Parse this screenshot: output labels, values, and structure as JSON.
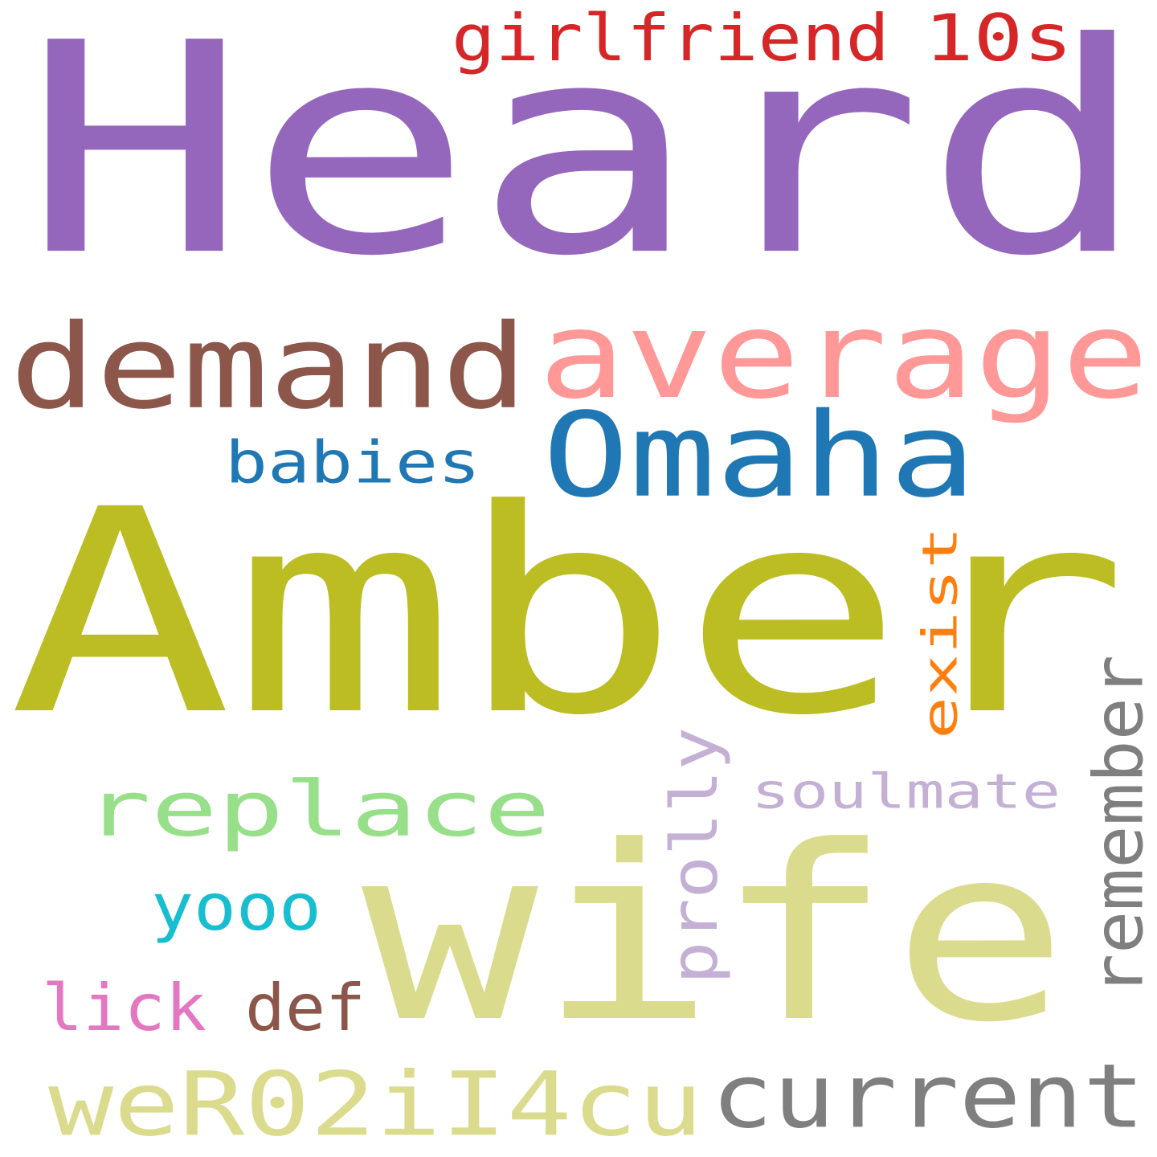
{
  "words": {
    "heard": {
      "text": "Heard",
      "color": "#9467bd"
    },
    "amber": {
      "text": "Amber",
      "color": "#bcbd22"
    },
    "wife": {
      "text": "wife",
      "color": "#dbdb8d"
    },
    "average": {
      "text": "average",
      "color": "#ff9896"
    },
    "demand": {
      "text": "demand",
      "color": "#8c564b"
    },
    "omaha": {
      "text": "Omaha",
      "color": "#1f77b4"
    },
    "girlfriend": {
      "text": "girlfriend",
      "color": "#d62728"
    },
    "tens": {
      "text": "10s",
      "color": "#d62728"
    },
    "babies": {
      "text": "babies",
      "color": "#1f77b4"
    },
    "replace": {
      "text": "replace",
      "color": "#98df8a"
    },
    "exist": {
      "text": "exist",
      "color": "#ff7f0e"
    },
    "soulmate": {
      "text": "soulmate",
      "color": "#c5b0d5"
    },
    "prolly": {
      "text": "prolly",
      "color": "#c5b0d5"
    },
    "remember": {
      "text": "remember",
      "color": "#7f7f7f"
    },
    "yooo": {
      "text": "yooo",
      "color": "#17becf"
    },
    "lick": {
      "text": "lick",
      "color": "#e377c2"
    },
    "def": {
      "text": "def",
      "color": "#8c564b"
    },
    "wer": {
      "text": "weR02iI4cu",
      "color": "#dbdb8d"
    },
    "current": {
      "text": "current",
      "color": "#7f7f7f"
    }
  }
}
